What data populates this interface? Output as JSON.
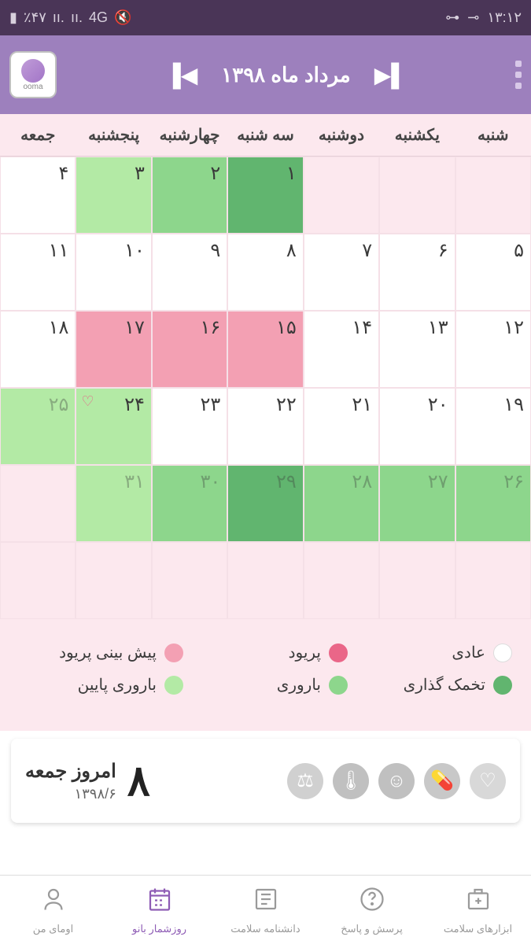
{
  "status": {
    "time": "۱۳:۱۲",
    "battery": "٪۴۷",
    "network": "4G"
  },
  "header": {
    "logo_text": "ooma",
    "month_title": "مرداد ماه ۱۳۹۸"
  },
  "weekdays": [
    "شنبه",
    "یکشنبه",
    "دوشنبه",
    "سه شنبه",
    "چهارشنبه",
    "پنجشنبه",
    "جمعه"
  ],
  "colors": {
    "normal": "#ffffff",
    "period": "#ea6688",
    "period_predict": "#f3a0b3",
    "ovulation": "#61b56f",
    "fertile": "#8dd68c",
    "fertile_low": "#b3eaa5",
    "bg_pink": "#fce8ee"
  },
  "days": [
    {
      "num": "۱",
      "bg_key": "ovulation"
    },
    {
      "num": "۲",
      "bg_key": "fertile"
    },
    {
      "num": "۳",
      "bg_key": "fertile_low"
    },
    {
      "num": "۴",
      "bg_key": "normal"
    },
    {
      "num": "۵",
      "bg_key": "normal"
    },
    {
      "num": "۶",
      "bg_key": "normal"
    },
    {
      "num": "۷",
      "bg_key": "normal"
    },
    {
      "num": "۸",
      "bg_key": "normal"
    },
    {
      "num": "۹",
      "bg_key": "normal"
    },
    {
      "num": "۱۰",
      "bg_key": "normal"
    },
    {
      "num": "۱۱",
      "bg_key": "normal"
    },
    {
      "num": "۱۲",
      "bg_key": "normal"
    },
    {
      "num": "۱۳",
      "bg_key": "normal"
    },
    {
      "num": "۱۴",
      "bg_key": "normal"
    },
    {
      "num": "۱۵",
      "bg_key": "period_predict"
    },
    {
      "num": "۱۶",
      "bg_key": "period_predict"
    },
    {
      "num": "۱۷",
      "bg_key": "period_predict"
    },
    {
      "num": "۱۸",
      "bg_key": "normal"
    },
    {
      "num": "۱۹",
      "bg_key": "normal"
    },
    {
      "num": "۲۰",
      "bg_key": "normal"
    },
    {
      "num": "۲۱",
      "bg_key": "normal"
    },
    {
      "num": "۲۲",
      "bg_key": "normal"
    },
    {
      "num": "۲۳",
      "bg_key": "normal"
    },
    {
      "num": "۲۴",
      "bg_key": "fertile_low",
      "heart": true
    },
    {
      "num": "۲۵",
      "bg_key": "fertile_low",
      "faded": true
    },
    {
      "num": "۲۶",
      "bg_key": "fertile",
      "faded": true
    },
    {
      "num": "۲۷",
      "bg_key": "fertile",
      "faded": true
    },
    {
      "num": "۲۸",
      "bg_key": "fertile",
      "faded": true
    },
    {
      "num": "۲۹",
      "bg_key": "ovulation",
      "faded": true
    },
    {
      "num": "۳۰",
      "bg_key": "fertile",
      "faded": true
    },
    {
      "num": "۳۱",
      "bg_key": "fertile_low",
      "faded": true
    }
  ],
  "legend": {
    "normal": "عادی",
    "period": "پریود",
    "period_predict": "پیش بینی پریود",
    "ovulation": "تخمک گذاری",
    "fertile": "باروری",
    "fertile_low": "باروری پایین"
  },
  "today": {
    "day_num": "۸",
    "title": "امروز جمعه",
    "date": "۱۳۹۸/۶"
  },
  "bottom_nav": [
    {
      "label": "ابزارهای سلامت",
      "icon": "health-tools"
    },
    {
      "label": "پرسش و پاسخ",
      "icon": "qa"
    },
    {
      "label": "دانشنامه سلامت",
      "icon": "encyclopedia"
    },
    {
      "label": "روزشمار بانو",
      "icon": "calendar",
      "active": true
    },
    {
      "label": "اومای من",
      "icon": "profile"
    }
  ]
}
